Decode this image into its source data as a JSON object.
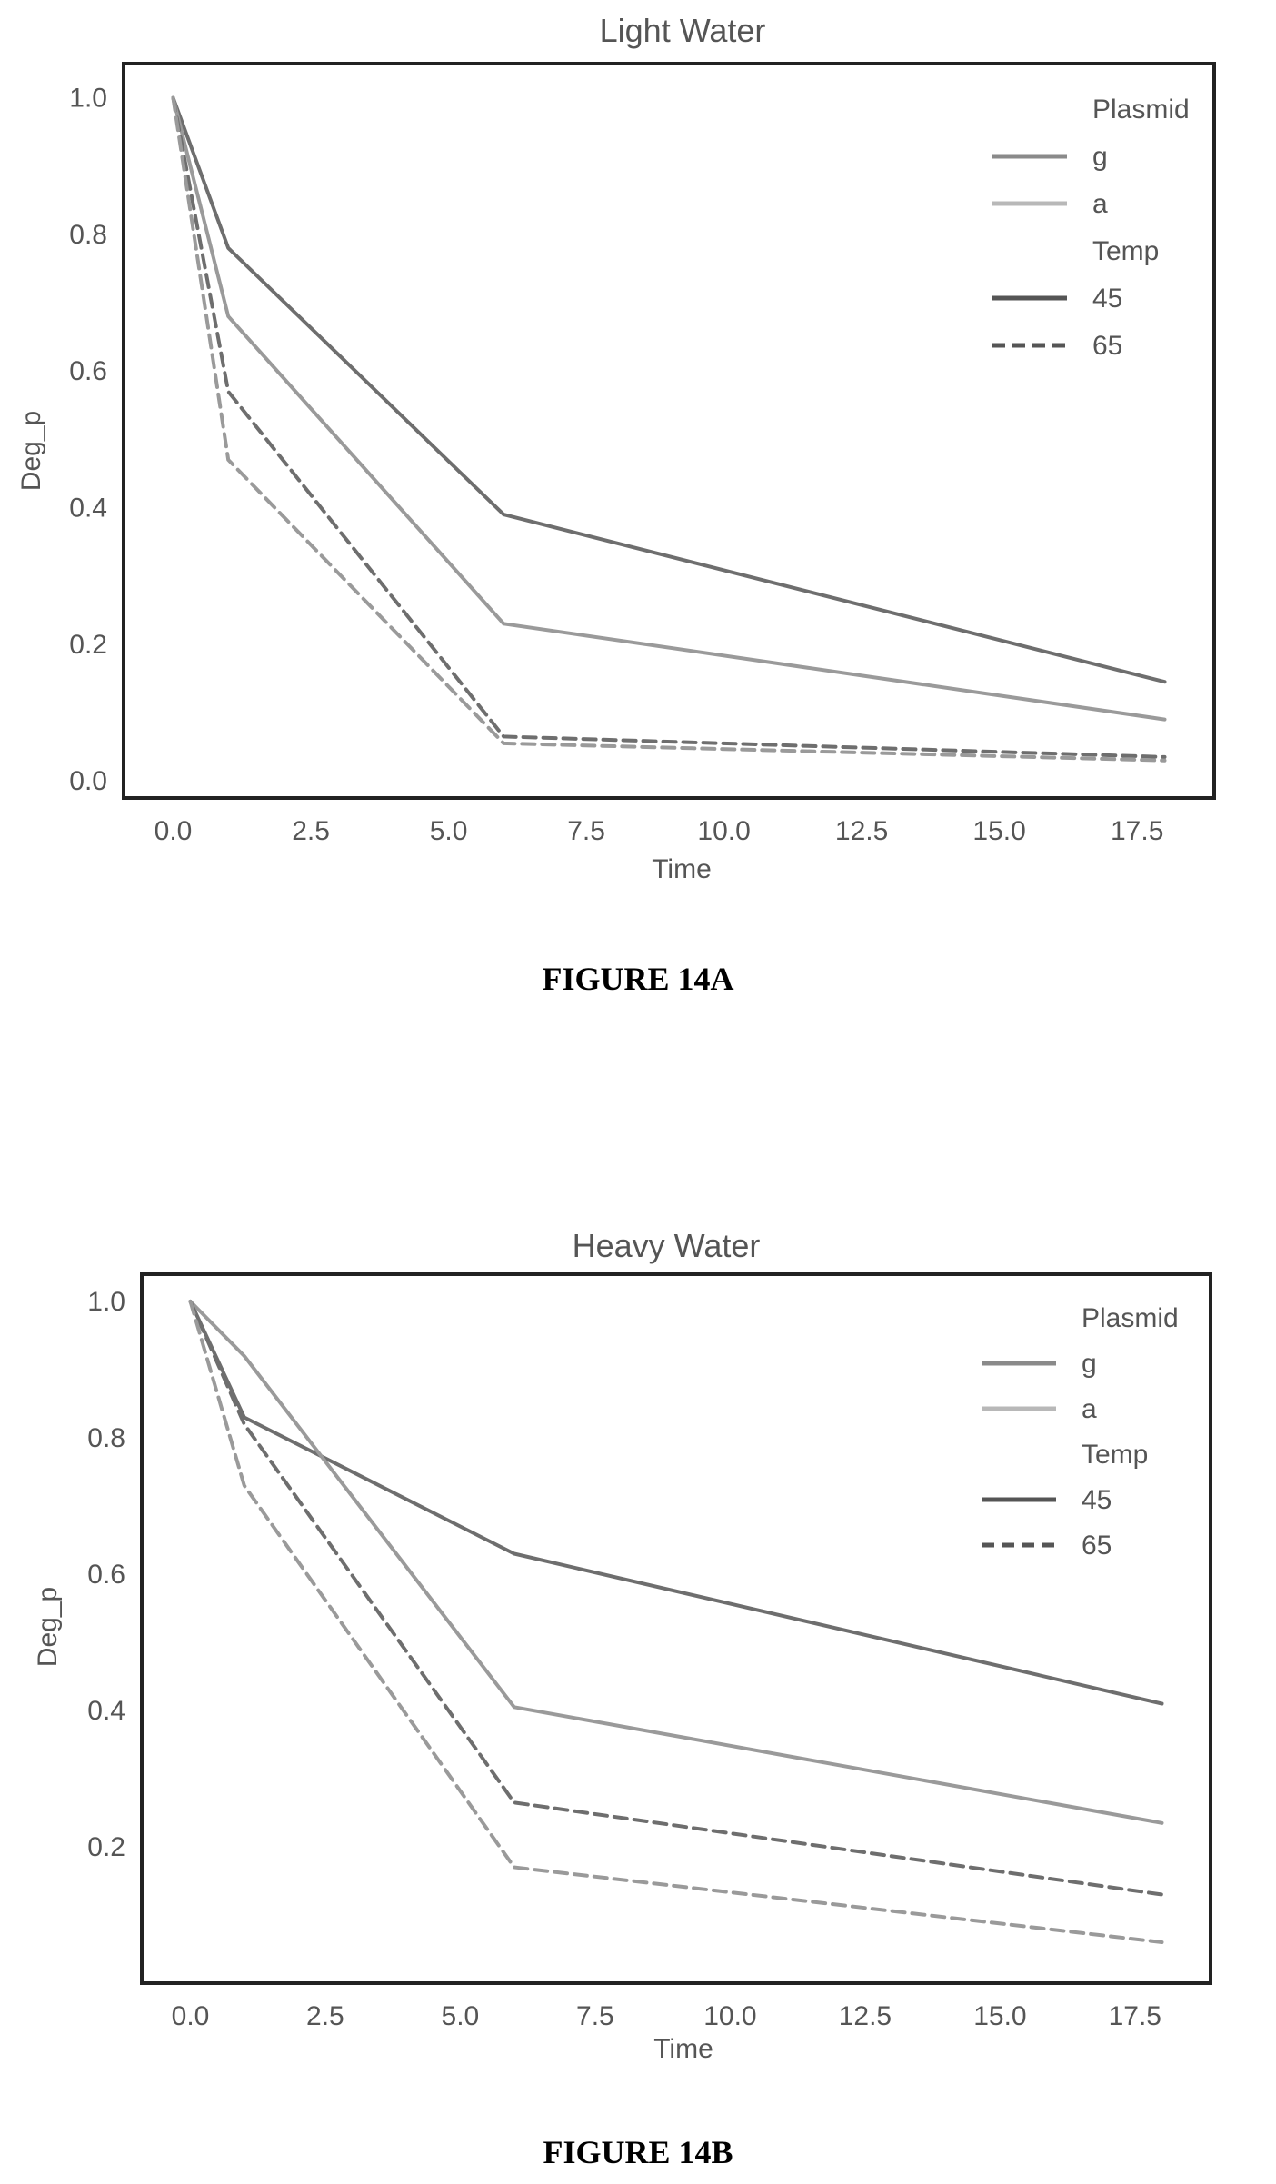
{
  "captions": [
    "FIGURE 14A",
    "FIGURE 14B"
  ],
  "chart_data": [
    {
      "type": "line",
      "title": "Light Water",
      "xlabel": "Time",
      "ylabel": "Deg_p",
      "xlim": [
        -0.9,
        18.9
      ],
      "ylim": [
        -0.025,
        1.05
      ],
      "xticks": [
        "0.0",
        "2.5",
        "5.0",
        "7.5",
        "10.0",
        "12.5",
        "15.0",
        "17.5"
      ],
      "yticks": [
        "0.0",
        "0.2",
        "0.4",
        "0.6",
        "0.8",
        "1.0"
      ],
      "grid": false,
      "legend": {
        "placement": "top-right",
        "entries": [
          {
            "text": "Plasmid",
            "kind": "header"
          },
          {
            "text": "g",
            "kind": "swatch",
            "color": "#8a8a8a",
            "dash": "solid"
          },
          {
            "text": "a",
            "kind": "swatch",
            "color": "#b8b8b8",
            "dash": "solid"
          },
          {
            "text": "Temp",
            "kind": "header"
          },
          {
            "text": "45",
            "kind": "swatch",
            "color": "#555555",
            "dash": "solid"
          },
          {
            "text": "65",
            "kind": "swatch",
            "color": "#555555",
            "dash": "dashed"
          }
        ]
      },
      "series": [
        {
          "plasmid": "g",
          "temp": "45",
          "color": "#6e6e6e",
          "dash": "solid",
          "x": [
            0,
            1,
            6,
            18
          ],
          "y": [
            1.0,
            0.78,
            0.39,
            0.145
          ]
        },
        {
          "plasmid": "a",
          "temp": "45",
          "color": "#9a9a9a",
          "dash": "solid",
          "x": [
            0,
            1,
            6,
            18
          ],
          "y": [
            1.0,
            0.68,
            0.23,
            0.09
          ]
        },
        {
          "plasmid": "g",
          "temp": "65",
          "color": "#6e6e6e",
          "dash": "dashed",
          "x": [
            0,
            1,
            6,
            18
          ],
          "y": [
            1.0,
            0.57,
            0.065,
            0.035
          ]
        },
        {
          "plasmid": "a",
          "temp": "65",
          "color": "#9a9a9a",
          "dash": "dashed",
          "x": [
            0,
            1,
            6,
            18
          ],
          "y": [
            1.0,
            0.47,
            0.055,
            0.03
          ]
        }
      ]
    },
    {
      "type": "line",
      "title": "Heavy Water",
      "xlabel": "Time",
      "ylabel": "Deg_p",
      "xlim": [
        -0.9,
        18.9
      ],
      "ylim": [
        0.0,
        1.04
      ],
      "xticks": [
        "0.0",
        "2.5",
        "5.0",
        "7.5",
        "10.0",
        "12.5",
        "15.0",
        "17.5"
      ],
      "yticks": [
        "0.2",
        "0.4",
        "0.6",
        "0.8",
        "1.0"
      ],
      "grid": false,
      "legend": {
        "placement": "top-right",
        "entries": [
          {
            "text": "Plasmid",
            "kind": "header"
          },
          {
            "text": "g",
            "kind": "swatch",
            "color": "#8a8a8a",
            "dash": "solid"
          },
          {
            "text": "a",
            "kind": "swatch",
            "color": "#b8b8b8",
            "dash": "solid"
          },
          {
            "text": "Temp",
            "kind": "header"
          },
          {
            "text": "45",
            "kind": "swatch",
            "color": "#555555",
            "dash": "solid"
          },
          {
            "text": "65",
            "kind": "swatch",
            "color": "#555555",
            "dash": "dashed"
          }
        ]
      },
      "series": [
        {
          "plasmid": "g",
          "temp": "45",
          "color": "#6e6e6e",
          "dash": "solid",
          "x": [
            0,
            1,
            6,
            18
          ],
          "y": [
            1.0,
            0.83,
            0.63,
            0.41
          ]
        },
        {
          "plasmid": "a",
          "temp": "45",
          "color": "#9a9a9a",
          "dash": "solid",
          "x": [
            0,
            1,
            6,
            18
          ],
          "y": [
            1.0,
            0.92,
            0.405,
            0.235
          ]
        },
        {
          "plasmid": "g",
          "temp": "65",
          "color": "#6e6e6e",
          "dash": "dashed",
          "x": [
            0,
            1,
            6,
            18
          ],
          "y": [
            1.0,
            0.82,
            0.265,
            0.13
          ]
        },
        {
          "plasmid": "a",
          "temp": "65",
          "color": "#9a9a9a",
          "dash": "dashed",
          "x": [
            0,
            1,
            6,
            18
          ],
          "y": [
            1.0,
            0.73,
            0.17,
            0.06
          ]
        }
      ]
    }
  ]
}
